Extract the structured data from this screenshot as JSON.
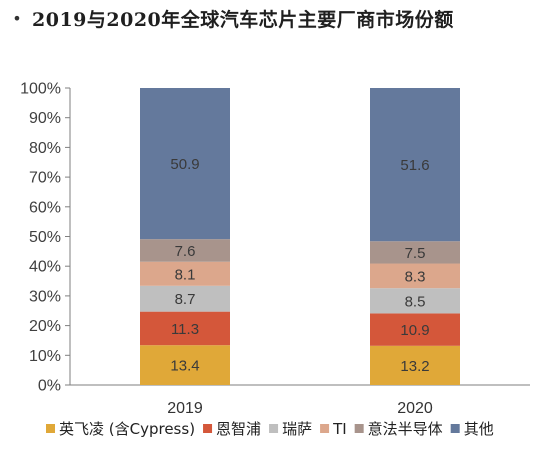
{
  "header": {
    "bullet": "•",
    "title": "2019与2020年全球汽车芯片主要厂商市场份额"
  },
  "chart_data": {
    "type": "bar",
    "stacked": true,
    "title": "2019与2020年全球汽车芯片主要厂商市场份额",
    "xlabel": "",
    "ylabel": "",
    "categories": [
      "2019",
      "2020"
    ],
    "ylim": [
      0,
      100
    ],
    "y_ticks": [
      "0%",
      "10%",
      "20%",
      "30%",
      "40%",
      "50%",
      "60%",
      "70%",
      "80%",
      "90%",
      "100%"
    ],
    "legend_position": "bottom",
    "grid": false,
    "series": [
      {
        "name": "英飞凌 (含Cypress)",
        "values": [
          13.4,
          13.2
        ],
        "color": "#e0a838"
      },
      {
        "name": "恩智浦",
        "values": [
          11.3,
          10.9
        ],
        "color": "#d4573a"
      },
      {
        "name": "瑞萨",
        "values": [
          8.7,
          8.5
        ],
        "color": "#bfbfbf"
      },
      {
        "name": "TI",
        "values": [
          8.1,
          8.3
        ],
        "color": "#dca78c"
      },
      {
        "name": "意法半导体",
        "values": [
          7.6,
          7.5
        ],
        "color": "#a8948c"
      },
      {
        "name": "其他",
        "values": [
          50.9,
          51.6
        ],
        "color": "#64799c"
      }
    ]
  }
}
